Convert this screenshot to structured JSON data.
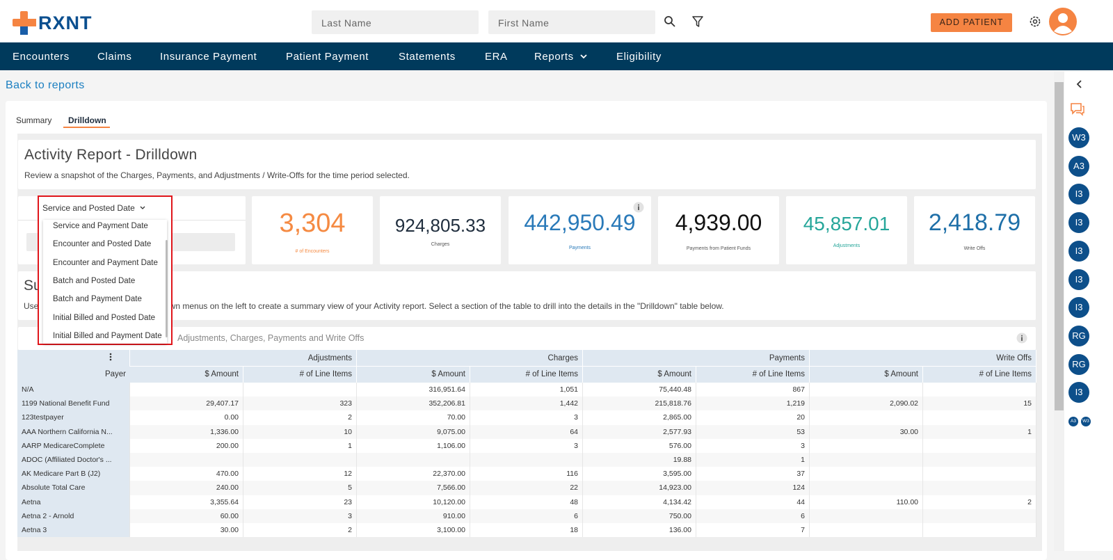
{
  "header": {
    "logo": "RXNT",
    "search_last": "Last Name",
    "search_first": "First Name",
    "add_patient": "ADD PATIENT"
  },
  "nav": [
    "Encounters",
    "Claims",
    "Insurance Payment",
    "Patient Payment",
    "Statements",
    "ERA",
    "Reports",
    "Eligibility"
  ],
  "back_link": "Back to reports",
  "tabs": [
    "Summary",
    "Drilldown"
  ],
  "report": {
    "title": "Activity Report - Drilldown",
    "description": "Review a snapshot of the Charges, Payments, and Adjustments / Write-Offs for the time period selected."
  },
  "date_filter": {
    "selected": "Service and Posted Date",
    "options": [
      "Service and Payment Date",
      "Encounter and Posted Date",
      "Encounter and Payment Date",
      "Batch and Posted Date",
      "Batch and Payment Date",
      "Initial Billed and Posted Date",
      "Initial Billed and Payment Date"
    ]
  },
  "kpis": [
    {
      "value": "3,304",
      "label": "# of Encounters"
    },
    {
      "value": "924,805.33",
      "label": "Charges"
    },
    {
      "value": "442,950.49",
      "label": "Payments"
    },
    {
      "value": "4,939.00",
      "label": "Payments from Patient Funds"
    },
    {
      "value": "45,857.01",
      "label": "Adjustments"
    },
    {
      "value": "2,418.79",
      "label": "Write Offs"
    }
  ],
  "summary": {
    "title_fragment": "Su",
    "description_fragments": [
      "Use t",
      "own menus on the left to create a summary view of your Activity report. Select a section of the table to drill into the details in the \"Drilldown\" table below."
    ]
  },
  "pivot": {
    "measures_text": "Adjustments, Charges, Payments and Write Offs"
  },
  "table": {
    "groups": [
      "Adjustments",
      "Charges",
      "Payments",
      "Write Offs"
    ],
    "row_header": "Payer",
    "sub_headers": [
      "$ Amount",
      "# of Line Items"
    ],
    "rows": [
      [
        "N/A",
        null,
        null,
        "316,951.64",
        "1,051",
        "75,440.48",
        "867",
        null,
        null
      ],
      [
        "1199 National Benefit Fund",
        "29,407.17",
        "323",
        "352,206.81",
        "1,442",
        "215,818.76",
        "1,219",
        "2,090.02",
        "15"
      ],
      [
        "123testpayer",
        "0.00",
        "2",
        "70.00",
        "3",
        "2,865.00",
        "20",
        null,
        null
      ],
      [
        "AAA Northern California N...",
        "1,336.00",
        "10",
        "9,075.00",
        "64",
        "2,577.93",
        "53",
        "30.00",
        "1"
      ],
      [
        "AARP MedicareComplete",
        "200.00",
        "1",
        "1,106.00",
        "3",
        "576.00",
        "3",
        null,
        null
      ],
      [
        "ADOC (Affiliated Doctor's ...",
        null,
        null,
        null,
        null,
        "19.88",
        "1",
        null,
        null
      ],
      [
        "AK Medicare Part B (J2)",
        "470.00",
        "12",
        "22,370.00",
        "116",
        "3,595.00",
        "37",
        null,
        null
      ],
      [
        "Absolute Total Care",
        "240.00",
        "5",
        "7,566.00",
        "22",
        "14,923.00",
        "124",
        null,
        null
      ],
      [
        "Aetna",
        "3,355.64",
        "23",
        "10,120.00",
        "48",
        "4,134.42",
        "44",
        "110.00",
        "2"
      ],
      [
        "Aetna 2 - Arnold",
        "60.00",
        "3",
        "910.00",
        "6",
        "750.00",
        "6",
        null,
        null
      ],
      [
        "Aetna 3",
        "30.00",
        "2",
        "3,100.00",
        "18",
        "136.00",
        "7",
        null,
        null
      ]
    ]
  },
  "sidebar": {
    "avatars": [
      "W3",
      "A3",
      "I3",
      "I3",
      "I3",
      "I3",
      "I3",
      "RG",
      "RG",
      "I3"
    ],
    "small_avatars": [
      "A3",
      "W3"
    ]
  }
}
